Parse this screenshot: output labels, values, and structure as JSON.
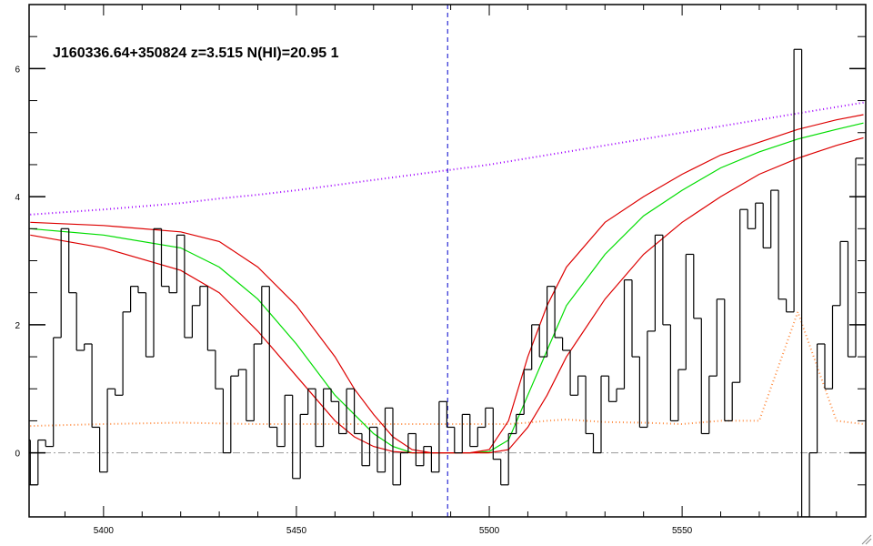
{
  "chart_data": {
    "type": "spectrum",
    "title": "J160336.64+350824 z=3.515 N(HI)=20.95 1",
    "xlim": [
      5380.7,
      5597.6
    ],
    "ylim": [
      -1,
      7
    ],
    "xticks": [
      5400,
      5450,
      5500,
      5550
    ],
    "yticks": [
      0,
      2,
      4,
      6
    ],
    "xminor": [
      5390,
      5410,
      5420,
      5430,
      5440,
      5460,
      5470,
      5480,
      5490,
      5510,
      5520,
      5530,
      5540,
      5560,
      5570,
      5580,
      5590
    ],
    "yminor": [
      -0.5,
      0.5,
      1,
      1.5,
      2.5,
      3,
      3.5,
      4.5,
      5,
      5.5,
      6.5
    ],
    "vline": 5489.2,
    "hline": 0,
    "flux": {
      "color": "#000000",
      "bin_width": 2,
      "x": [
        5380,
        5382,
        5384,
        5386,
        5388,
        5390,
        5392,
        5394,
        5396,
        5398,
        5400,
        5402,
        5404,
        5406,
        5408,
        5410,
        5412,
        5414,
        5416,
        5418,
        5420,
        5422,
        5424,
        5426,
        5428,
        5430,
        5432,
        5434,
        5436,
        5438,
        5440,
        5442,
        5444,
        5446,
        5448,
        5450,
        5452,
        5454,
        5456,
        5458,
        5460,
        5462,
        5464,
        5466,
        5468,
        5470,
        5472,
        5474,
        5476,
        5478,
        5480,
        5482,
        5484,
        5486,
        5488,
        5490,
        5492,
        5494,
        5496,
        5498,
        5500,
        5502,
        5504,
        5506,
        5508,
        5510,
        5512,
        5514,
        5516,
        5518,
        5520,
        5522,
        5524,
        5526,
        5528,
        5530,
        5532,
        5534,
        5536,
        5538,
        5540,
        5542,
        5544,
        5546,
        5548,
        5550,
        5552,
        5554,
        5556,
        5558,
        5560,
        5562,
        5564,
        5566,
        5568,
        5570,
        5572,
        5574,
        5576,
        5578,
        5580,
        5582,
        5584,
        5586,
        5588,
        5590,
        5592,
        5594,
        5596
      ],
      "values": [
        0.2,
        -0.5,
        0.2,
        0.1,
        1.8,
        3.5,
        2.5,
        1.6,
        1.7,
        0.4,
        -0.3,
        1.0,
        0.9,
        2.2,
        2.6,
        2.5,
        1.5,
        3.5,
        2.6,
        2.5,
        3.4,
        1.8,
        2.3,
        2.6,
        1.6,
        1.0,
        0.0,
        1.2,
        1.3,
        0.5,
        1.7,
        2.6,
        0.4,
        0.1,
        0.9,
        -0.4,
        0.6,
        1.0,
        0.1,
        1.0,
        0.8,
        0.3,
        1.0,
        0.3,
        -0.2,
        0.4,
        -0.3,
        0.7,
        -0.5,
        0.0,
        0.3,
        -0.2,
        0.1,
        -0.3,
        0.8,
        0.4,
        0.0,
        0.6,
        0.1,
        0.4,
        0.7,
        -0.1,
        -0.5,
        0.3,
        0.6,
        1.3,
        2.0,
        1.5,
        2.6,
        1.8,
        1.6,
        0.9,
        1.2,
        0.3,
        0.0,
        1.2,
        0.8,
        1.0,
        2.7,
        1.5,
        0.4,
        1.9,
        3.4,
        2.0,
        0.5,
        1.3,
        3.1,
        2.1,
        0.3,
        1.2,
        2.4,
        0.5,
        1.1,
        3.8,
        3.5,
        3.9,
        3.2,
        4.1,
        2.4,
        2.2,
        6.3,
        -1.0,
        0.0,
        1.7,
        1.0,
        2.3,
        3.3,
        1.5,
        4.6
      ]
    },
    "x": [
      5381,
      5400,
      5420,
      5430,
      5440,
      5450,
      5460,
      5465,
      5470,
      5475,
      5480,
      5485,
      5490,
      5495,
      5500,
      5505,
      5510,
      5515,
      5520,
      5530,
      5540,
      5550,
      5560,
      5570,
      5580,
      5590,
      5597
    ],
    "series": [
      {
        "color": "#ff8c40",
        "style": "dotted",
        "values": [
          0.42,
          0.45,
          0.47,
          0.46,
          0.45,
          0.45,
          0.45,
          0.45,
          0.45,
          0.45,
          0.45,
          0.45,
          0.45,
          0.45,
          0.45,
          0.45,
          0.47,
          0.5,
          0.52,
          0.48,
          0.47,
          0.45,
          0.5,
          0.5,
          2.2,
          0.5,
          0.45
        ]
      },
      {
        "color": "#a000ff",
        "style": "dotted",
        "values": [
          3.72,
          3.8,
          3.9,
          3.97,
          4.03,
          4.1,
          4.18,
          4.22,
          4.26,
          4.3,
          4.34,
          4.38,
          4.42,
          4.46,
          4.5,
          4.55,
          4.6,
          4.65,
          4.7,
          4.8,
          4.9,
          5.0,
          5.1,
          5.2,
          5.3,
          5.4,
          5.47
        ]
      },
      {
        "color": "#00dd00",
        "style": "solid",
        "values": [
          3.5,
          3.4,
          3.2,
          2.9,
          2.4,
          1.7,
          0.9,
          0.6,
          0.3,
          0.1,
          0,
          0,
          0,
          0,
          0.02,
          0.2,
          0.9,
          1.6,
          2.3,
          3.1,
          3.7,
          4.1,
          4.45,
          4.7,
          4.9,
          5.05,
          5.15
        ]
      },
      {
        "color": "#dd0000",
        "style": "solid",
        "values": [
          3.6,
          3.55,
          3.45,
          3.3,
          2.9,
          2.3,
          1.5,
          1.0,
          0.6,
          0.25,
          0.05,
          0,
          0,
          0,
          0.05,
          0.5,
          1.5,
          2.3,
          2.9,
          3.6,
          4.0,
          4.35,
          4.65,
          4.85,
          5.05,
          5.2,
          5.28
        ]
      },
      {
        "color": "#dd0000",
        "style": "solid",
        "values": [
          3.4,
          3.2,
          2.85,
          2.5,
          1.9,
          1.2,
          0.5,
          0.25,
          0.1,
          0.02,
          0,
          0,
          0,
          0,
          0,
          0.05,
          0.4,
          0.9,
          1.5,
          2.4,
          3.1,
          3.6,
          4.0,
          4.35,
          4.6,
          4.8,
          4.92
        ]
      }
    ]
  }
}
